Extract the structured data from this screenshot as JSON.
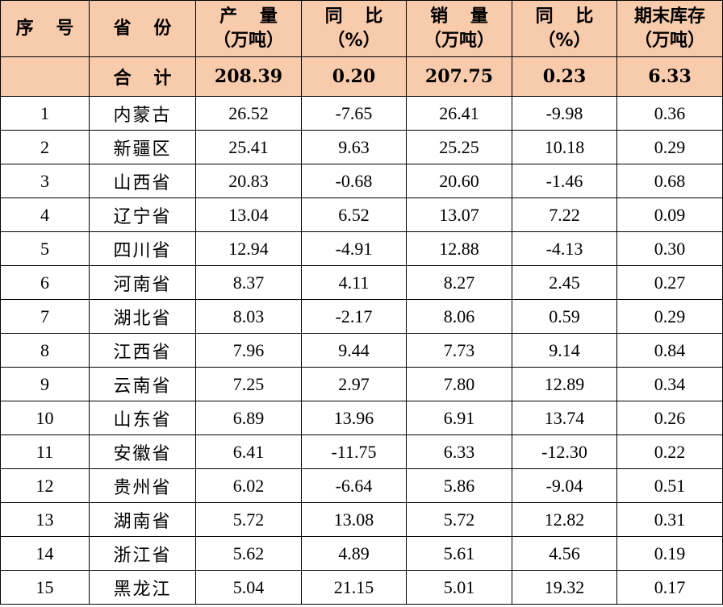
{
  "headers": [
    {
      "line1": "序 号",
      "line2": ""
    },
    {
      "line1": "省 份",
      "line2": ""
    },
    {
      "line1": "产 量",
      "line2": "（万吨）"
    },
    {
      "line1": "同 比",
      "line2": "（%）"
    },
    {
      "line1": "销 量",
      "line2": "（万吨）"
    },
    {
      "line1": "同 比",
      "line2": "（%）"
    },
    {
      "line1": "期末库存",
      "line2": "（万吨）"
    }
  ],
  "total": {
    "label": "合 计",
    "production": "208.39",
    "production_yoy": "0.20",
    "sales": "207.75",
    "sales_yoy": "0.23",
    "inventory": "6.33"
  },
  "rows": [
    {
      "no": "1",
      "province": "内蒙古",
      "production": "26.52",
      "production_yoy": "-7.65",
      "sales": "26.41",
      "sales_yoy": "-9.98",
      "inventory": "0.36"
    },
    {
      "no": "2",
      "province": "新疆区",
      "production": "25.41",
      "production_yoy": "9.63",
      "sales": "25.25",
      "sales_yoy": "10.18",
      "inventory": "0.29"
    },
    {
      "no": "3",
      "province": "山西省",
      "production": "20.83",
      "production_yoy": "-0.68",
      "sales": "20.60",
      "sales_yoy": "-1.46",
      "inventory": "0.68"
    },
    {
      "no": "4",
      "province": "辽宁省",
      "production": "13.04",
      "production_yoy": "6.52",
      "sales": "13.07",
      "sales_yoy": "7.22",
      "inventory": "0.09"
    },
    {
      "no": "5",
      "province": "四川省",
      "production": "12.94",
      "production_yoy": "-4.91",
      "sales": "12.88",
      "sales_yoy": "-4.13",
      "inventory": "0.30"
    },
    {
      "no": "6",
      "province": "河南省",
      "production": "8.37",
      "production_yoy": "4.11",
      "sales": "8.27",
      "sales_yoy": "2.45",
      "inventory": "0.27"
    },
    {
      "no": "7",
      "province": "湖北省",
      "production": "8.03",
      "production_yoy": "-2.17",
      "sales": "8.06",
      "sales_yoy": "0.59",
      "inventory": "0.29"
    },
    {
      "no": "8",
      "province": "江西省",
      "production": "7.96",
      "production_yoy": "9.44",
      "sales": "7.73",
      "sales_yoy": "9.14",
      "inventory": "0.84"
    },
    {
      "no": "9",
      "province": "云南省",
      "production": "7.25",
      "production_yoy": "2.97",
      "sales": "7.80",
      "sales_yoy": "12.89",
      "inventory": "0.34"
    },
    {
      "no": "10",
      "province": "山东省",
      "production": "6.89",
      "production_yoy": "13.96",
      "sales": "6.91",
      "sales_yoy": "13.74",
      "inventory": "0.26"
    },
    {
      "no": "11",
      "province": "安徽省",
      "production": "6.41",
      "production_yoy": "-11.75",
      "sales": "6.33",
      "sales_yoy": "-12.30",
      "inventory": "0.22"
    },
    {
      "no": "12",
      "province": "贵州省",
      "production": "6.02",
      "production_yoy": "-6.64",
      "sales": "5.86",
      "sales_yoy": "-9.04",
      "inventory": "0.51"
    },
    {
      "no": "13",
      "province": "湖南省",
      "production": "5.72",
      "production_yoy": "13.08",
      "sales": "5.72",
      "sales_yoy": "12.82",
      "inventory": "0.31"
    },
    {
      "no": "14",
      "province": "浙江省",
      "production": "5.62",
      "production_yoy": "4.89",
      "sales": "5.61",
      "sales_yoy": "4.56",
      "inventory": "0.19"
    },
    {
      "no": "15",
      "province": "黑龙江",
      "production": "5.04",
      "production_yoy": "21.15",
      "sales": "5.01",
      "sales_yoy": "19.32",
      "inventory": "0.17"
    }
  ],
  "colors": {
    "header_fill": "#f8cbac",
    "border": "#000000"
  }
}
